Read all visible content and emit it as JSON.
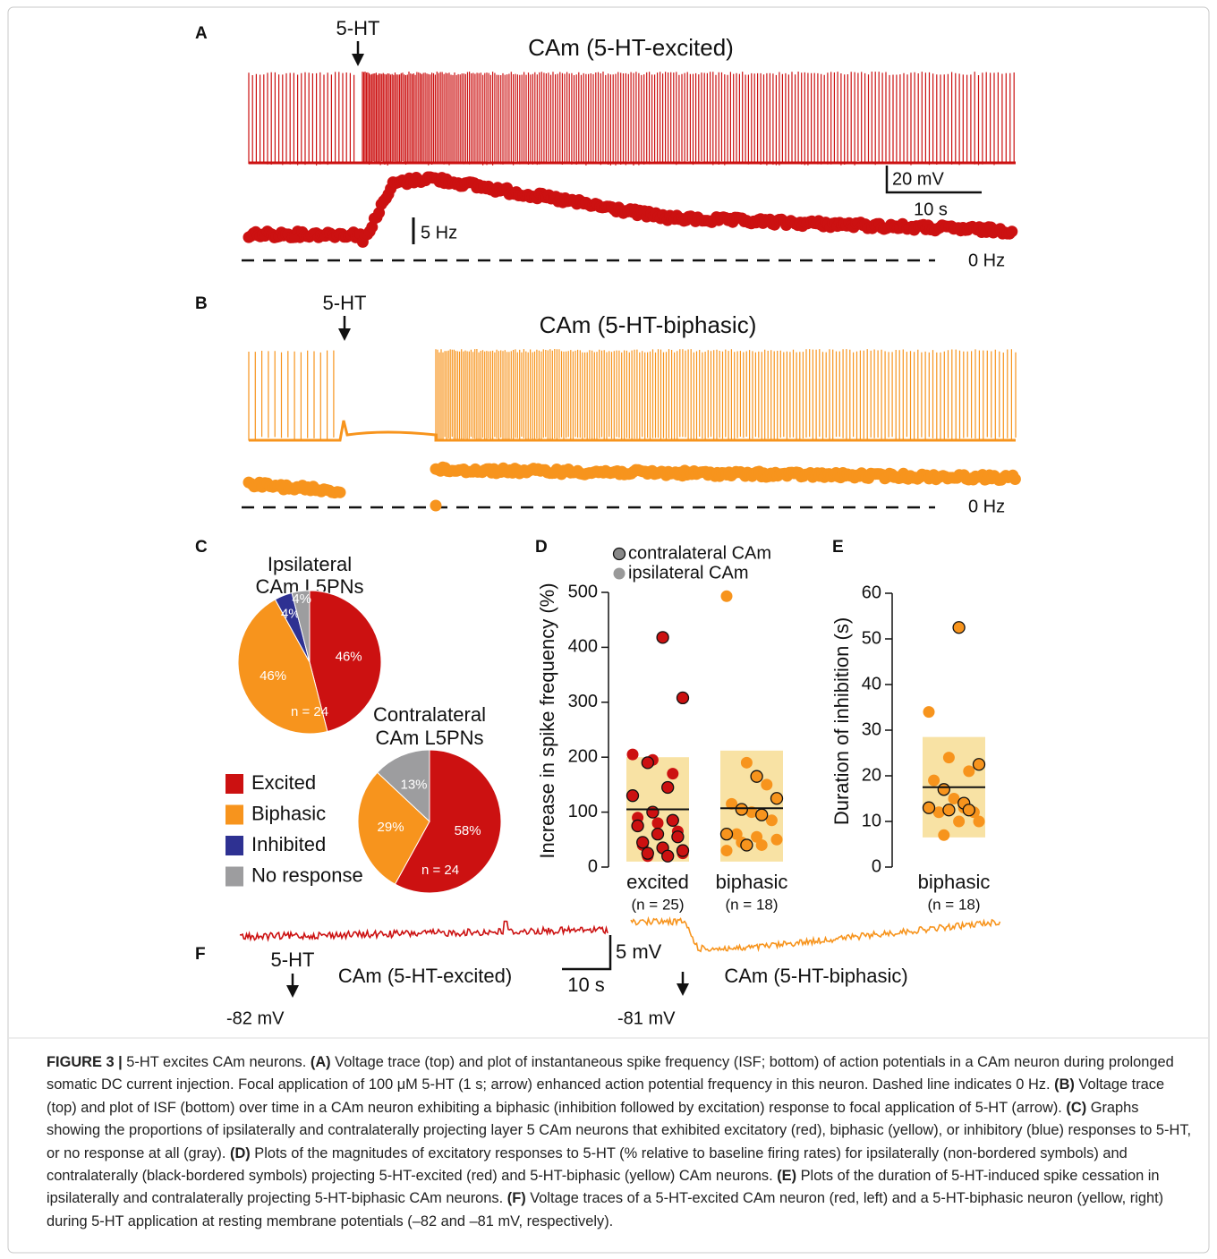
{
  "panels": [
    {
      "label": "A",
      "drug": "5-HT",
      "title": "CAm (5-HT-excited)",
      "scale_v": "20 mV",
      "scale_t": "10 s",
      "scale_f": "5 Hz",
      "zero": "0 Hz"
    },
    {
      "label": "B",
      "drug": "5-HT",
      "title": "CAm (5-HT-biphasic)",
      "zero": "0 Hz"
    },
    {
      "label": "F",
      "drug": "5-HT",
      "title_left": "CAm (5-HT-excited)",
      "title_right": "CAm (5-HT-biphasic)",
      "scale_v": "5 mV",
      "scale_t": "10 s",
      "vm_left": "-82 mV",
      "vm_right": "-81 mV"
    }
  ],
  "chart_data": [
    {
      "type": "pie",
      "panel_label": "C",
      "title": [
        "Ipsilateral",
        "CAm L5PNs"
      ],
      "categories": [
        "Excited",
        "Biphasic",
        "Inhibited",
        "No response"
      ],
      "values": [
        46,
        46,
        4,
        4
      ],
      "value_labels": [
        "46%",
        "46%",
        "4%",
        "4%"
      ],
      "colors": [
        "#cc1111",
        "#f7941d",
        "#2e3192",
        "#9d9d9f"
      ],
      "annotation": "n = 24"
    },
    {
      "type": "pie",
      "title": [
        "Contralateral",
        "CAm L5PNs"
      ],
      "categories": [
        "Excited",
        "Biphasic",
        "No response"
      ],
      "values": [
        58,
        29,
        13
      ],
      "value_labels": [
        "58%",
        "29%",
        "13%"
      ],
      "colors": [
        "#cc1111",
        "#f7941d",
        "#9d9d9f"
      ],
      "annotation": "n = 24"
    },
    {
      "type": "dot",
      "panel_label": "D",
      "y_label": "Increase in spike frequency (%)",
      "ylim": [
        0,
        500
      ],
      "yticks": [
        0,
        100,
        200,
        300,
        400,
        500
      ],
      "legend": [
        {
          "name": "contralateral CAm",
          "color": "#888888",
          "border": true
        },
        {
          "name": "ipsilateral CAm",
          "color": "#999999",
          "border": false
        }
      ],
      "groups": [
        {
          "category": "excited",
          "n_label": "(n = 25)",
          "color": "#cc1111",
          "mean": 105,
          "box": [
            10,
            200
          ],
          "contralateral": [
            418,
            308,
            190,
            145,
            130,
            100,
            85,
            75,
            60,
            55,
            45,
            35,
            30,
            25,
            20
          ],
          "ipsilateral": [
            205,
            195,
            170,
            90,
            80,
            65,
            40,
            35,
            25,
            20
          ]
        },
        {
          "category": "biphasic",
          "n_label": "(n = 18)",
          "color": "#f7941d",
          "mean": 107,
          "box": [
            10,
            212
          ],
          "contralateral": [
            165,
            125,
            105,
            95,
            60,
            40
          ],
          "ipsilateral": [
            493,
            190,
            150,
            115,
            100,
            85,
            60,
            55,
            50,
            45,
            40,
            30
          ]
        }
      ]
    },
    {
      "type": "dot",
      "panel_label": "E",
      "y_label": "Duration of inhibition (s)",
      "ylim": [
        0,
        60
      ],
      "yticks": [
        0,
        10,
        20,
        30,
        40,
        50,
        60
      ],
      "groups": [
        {
          "category": "biphasic",
          "n_label": "(n = 18)",
          "color": "#f7941d",
          "mean": 17.5,
          "box": [
            6.5,
            28.5
          ],
          "contralateral": [
            52.5,
            22.5,
            17,
            14,
            13,
            12.5,
            12.5
          ],
          "ipsilateral": [
            34,
            24,
            21,
            19,
            15,
            12,
            12,
            10,
            10,
            7,
            13
          ]
        }
      ]
    }
  ],
  "caption": [
    {
      "text": "FIGURE 3 |",
      "bold": true
    },
    {
      "text": " 5-HT excites CAm neurons. ",
      "bold": false
    },
    {
      "text": "(A)",
      "bold": true
    },
    {
      "text": " Voltage trace (top) and plot of instantaneous spike frequency (ISF; bottom) of action potentials in a CAm neuron during prolonged somatic DC current injection. Focal application of 100 μM 5-HT (1 s; arrow) enhanced action potential frequency in this neuron. Dashed line indicates 0 Hz. ",
      "bold": false
    },
    {
      "text": "(B)",
      "bold": true
    },
    {
      "text": " Voltage trace (top) and plot of ISF (bottom) over time in a CAm neuron exhibiting a biphasic (inhibition followed by excitation) response to focal application of 5-HT (arrow). ",
      "bold": false
    },
    {
      "text": "(C)",
      "bold": true
    },
    {
      "text": " Graphs showing the proportions of ipsilaterally and contralaterally projecting layer 5 CAm neurons that exhibited excitatory (red), biphasic (yellow), or inhibitory (blue) responses to 5-HT, or no response at all (gray). ",
      "bold": false
    },
    {
      "text": "(D)",
      "bold": true
    },
    {
      "text": " Plots of the magnitudes of excitatory responses to 5-HT (% relative to baseline firing rates) for ipsilaterally (non-bordered symbols) and contralaterally (black-bordered symbols) projecting 5-HT-excited (red) and 5-HT-biphasic (yellow) CAm neurons. ",
      "bold": false
    },
    {
      "text": "(E)",
      "bold": true
    },
    {
      "text": " Plots of the duration of 5-HT-induced spike cessation in ipsilaterally and contralaterally projecting 5-HT-biphasic CAm neurons. ",
      "bold": false
    },
    {
      "text": "(F)",
      "bold": true
    },
    {
      "text": " Voltage traces of a 5-HT-excited CAm neuron (red, left) and a 5-HT-biphasic neuron (yellow, right) during 5-HT application at resting membrane potentials (–82 and –81 mV, respectively).",
      "bold": false
    }
  ]
}
